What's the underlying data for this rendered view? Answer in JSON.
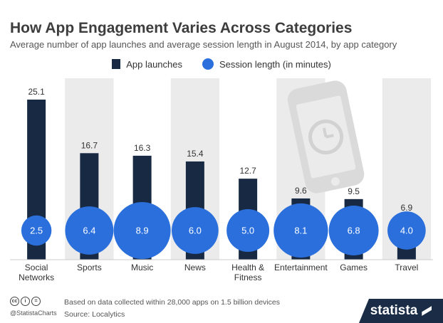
{
  "header": {
    "title": "How App Engagement Varies Across Categories",
    "subtitle": "Average number of app launches and average session length in August 2014, by app category"
  },
  "legend": {
    "bar_label": "App launches",
    "dot_label": "Session length (in minutes)"
  },
  "colors": {
    "bar": "#182a43",
    "dot": "#2a6fdb",
    "band": "#ebebeb",
    "phone": "#d9d9d9"
  },
  "chart_data": {
    "type": "bar",
    "categories": [
      "Social Networks",
      "Sports",
      "Music",
      "News",
      "Health & Fitness",
      "Entertainment",
      "Games",
      "Travel"
    ],
    "category_lines": [
      [
        "Social",
        "Networks"
      ],
      [
        "Sports"
      ],
      [
        "Music"
      ],
      [
        "News"
      ],
      [
        "Health &",
        "Fitness"
      ],
      [
        "Entertainment"
      ],
      [
        "Games"
      ],
      [
        "Travel"
      ]
    ],
    "series": [
      {
        "name": "App launches",
        "type": "bar",
        "values": [
          25.1,
          16.7,
          16.3,
          15.4,
          12.7,
          9.6,
          9.5,
          6.9
        ]
      },
      {
        "name": "Session length (in minutes)",
        "type": "bubble",
        "values": [
          2.5,
          6.4,
          8.9,
          6.0,
          5.0,
          8.1,
          6.8,
          4.0
        ]
      }
    ],
    "shaded_bands": [
      1,
      3,
      5,
      7
    ]
  },
  "footer": {
    "note_line1": "Based on data collected within 28,000 apps on 1.5 billion devices",
    "note_line2": "Source: Localytics",
    "handle": "@StatistaCharts",
    "brand": "statista"
  }
}
